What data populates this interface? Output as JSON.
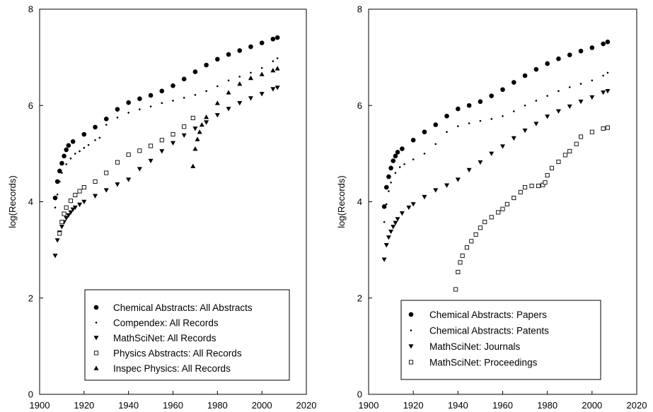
{
  "chart_data": [
    {
      "type": "scatter",
      "ylabel": "log(Records)",
      "xlim": [
        1900,
        2020
      ],
      "ylim": [
        0,
        8
      ],
      "xticks": [
        1900,
        1920,
        1940,
        1960,
        1980,
        2000,
        2020
      ],
      "yticks": [
        0,
        2,
        4,
        6,
        8
      ],
      "grid": false,
      "legend_position": "bottom-center",
      "series": [
        {
          "name": "Chemical Abstracts: All Abstracts",
          "marker": "circle-filled",
          "x": [
            1907,
            1908,
            1909,
            1910,
            1911,
            1912,
            1913,
            1915,
            1920,
            1925,
            1930,
            1935,
            1940,
            1945,
            1950,
            1955,
            1960,
            1965,
            1970,
            1975,
            1980,
            1985,
            1990,
            1995,
            2000,
            2005,
            2007
          ],
          "y": [
            4.08,
            4.42,
            4.64,
            4.8,
            4.95,
            5.08,
            5.17,
            5.25,
            5.4,
            5.55,
            5.72,
            5.92,
            6.06,
            6.14,
            6.21,
            6.3,
            6.41,
            6.55,
            6.7,
            6.84,
            6.96,
            7.06,
            7.14,
            7.22,
            7.3,
            7.38,
            7.41
          ]
        },
        {
          "name": "Compendex: All Records",
          "marker": "dot",
          "x": [
            1907,
            1908,
            1909,
            1910,
            1912,
            1914,
            1916,
            1918,
            1920,
            1922,
            1925,
            1927,
            1930,
            1935,
            1940,
            1945,
            1950,
            1955,
            1960,
            1965,
            1970,
            1975,
            1980,
            1985,
            1990,
            1995,
            2000,
            2005,
            2007
          ],
          "y": [
            3.88,
            4.15,
            4.42,
            4.6,
            4.78,
            4.9,
            5.0,
            5.05,
            5.12,
            5.18,
            5.28,
            5.33,
            5.6,
            5.75,
            5.85,
            5.92,
            5.98,
            6.05,
            6.1,
            6.16,
            6.22,
            6.3,
            6.4,
            6.52,
            6.6,
            6.68,
            6.78,
            6.92,
            6.98
          ]
        },
        {
          "name": "MathSciNet: All Records",
          "marker": "triangle-down-filled",
          "x": [
            1907,
            1908,
            1909,
            1910,
            1911,
            1912,
            1913,
            1914,
            1915,
            1916,
            1918,
            1920,
            1925,
            1930,
            1935,
            1940,
            1945,
            1950,
            1955,
            1960,
            1965,
            1970,
            1975,
            1980,
            1985,
            1990,
            1995,
            2000,
            2005,
            2007
          ],
          "y": [
            2.88,
            3.2,
            3.36,
            3.48,
            3.58,
            3.66,
            3.72,
            3.78,
            3.84,
            3.88,
            3.94,
            4.0,
            4.12,
            4.24,
            4.36,
            4.46,
            4.68,
            4.85,
            5.05,
            5.22,
            5.38,
            5.52,
            5.65,
            5.8,
            5.93,
            6.05,
            6.15,
            6.24,
            6.34,
            6.37
          ]
        },
        {
          "name": "Physics Abstracts: All Records",
          "marker": "square-open",
          "x": [
            1909,
            1910,
            1911,
            1912,
            1914,
            1916,
            1918,
            1920,
            1925,
            1930,
            1935,
            1940,
            1945,
            1950,
            1955,
            1960,
            1965,
            1969
          ],
          "y": [
            3.34,
            3.58,
            3.75,
            3.88,
            4.02,
            4.14,
            4.22,
            4.3,
            4.42,
            4.6,
            4.82,
            4.98,
            5.06,
            5.16,
            5.28,
            5.4,
            5.56,
            5.74
          ]
        },
        {
          "name": "Inspec Physics: All Records",
          "marker": "triangle-up-filled",
          "x": [
            1969,
            1970,
            1971,
            1972,
            1973,
            1975,
            1980,
            1985,
            1990,
            1995,
            2000,
            2005,
            2007
          ],
          "y": [
            4.74,
            5.1,
            5.3,
            5.45,
            5.6,
            5.76,
            6.05,
            6.27,
            6.45,
            6.57,
            6.65,
            6.73,
            6.77
          ]
        }
      ]
    },
    {
      "type": "scatter",
      "ylabel": "log(Records)",
      "xlim": [
        1900,
        2020
      ],
      "ylim": [
        0,
        8
      ],
      "xticks": [
        1900,
        1920,
        1940,
        1960,
        1980,
        2000,
        2020
      ],
      "yticks": [
        0,
        2,
        4,
        6,
        8
      ],
      "grid": false,
      "legend_position": "bottom-center",
      "series": [
        {
          "name": "Chemical Abstracts: Papers",
          "marker": "circle-filled",
          "x": [
            1907,
            1908,
            1909,
            1910,
            1911,
            1912,
            1913,
            1915,
            1920,
            1925,
            1930,
            1935,
            1940,
            1945,
            1950,
            1955,
            1960,
            1965,
            1970,
            1975,
            1980,
            1985,
            1990,
            1995,
            2000,
            2005,
            2007
          ],
          "y": [
            3.9,
            4.3,
            4.52,
            4.7,
            4.85,
            4.95,
            5.03,
            5.1,
            5.28,
            5.45,
            5.6,
            5.78,
            5.93,
            6.0,
            6.08,
            6.2,
            6.33,
            6.48,
            6.62,
            6.75,
            6.87,
            6.97,
            7.05,
            7.13,
            7.2,
            7.28,
            7.32
          ]
        },
        {
          "name": "Chemical Abstracts: Patents",
          "marker": "dot",
          "x": [
            1907,
            1908,
            1909,
            1910,
            1912,
            1914,
            1916,
            1920,
            1925,
            1930,
            1935,
            1940,
            1945,
            1950,
            1955,
            1960,
            1965,
            1970,
            1975,
            1980,
            1985,
            1990,
            1995,
            2000,
            2005,
            2007
          ],
          "y": [
            3.58,
            3.95,
            4.22,
            4.4,
            4.6,
            4.72,
            4.78,
            4.88,
            5.0,
            5.2,
            5.45,
            5.57,
            5.63,
            5.68,
            5.72,
            5.78,
            5.88,
            6.0,
            6.1,
            6.2,
            6.3,
            6.38,
            6.45,
            6.52,
            6.62,
            6.68
          ]
        },
        {
          "name": "MathSciNet: Journals",
          "marker": "triangle-down-filled",
          "x": [
            1907,
            1908,
            1909,
            1910,
            1911,
            1912,
            1913,
            1915,
            1918,
            1920,
            1925,
            1930,
            1935,
            1940,
            1945,
            1950,
            1955,
            1960,
            1965,
            1970,
            1975,
            1980,
            1985,
            1990,
            1995,
            2000,
            2005,
            2007
          ],
          "y": [
            2.8,
            3.1,
            3.26,
            3.38,
            3.48,
            3.56,
            3.64,
            3.76,
            3.88,
            3.95,
            4.1,
            4.24,
            4.34,
            4.46,
            4.66,
            4.82,
            5.0,
            5.15,
            5.32,
            5.48,
            5.62,
            5.77,
            5.88,
            5.98,
            6.08,
            6.17,
            6.27,
            6.3
          ]
        },
        {
          "name": "MathSciNet: Proceedings",
          "marker": "square-open",
          "x": [
            1939,
            1940,
            1941,
            1942,
            1944,
            1946,
            1948,
            1950,
            1952,
            1955,
            1958,
            1960,
            1962,
            1965,
            1968,
            1970,
            1973,
            1976,
            1978,
            1979,
            1980,
            1982,
            1985,
            1988,
            1990,
            1993,
            1995,
            2000,
            2005,
            2007
          ],
          "y": [
            2.18,
            2.54,
            2.74,
            2.88,
            3.05,
            3.18,
            3.32,
            3.46,
            3.58,
            3.68,
            3.78,
            3.85,
            3.95,
            4.08,
            4.2,
            4.3,
            4.33,
            4.33,
            4.35,
            4.4,
            4.55,
            4.7,
            4.83,
            4.97,
            5.05,
            5.2,
            5.35,
            5.45,
            5.52,
            5.54
          ]
        }
      ]
    }
  ]
}
